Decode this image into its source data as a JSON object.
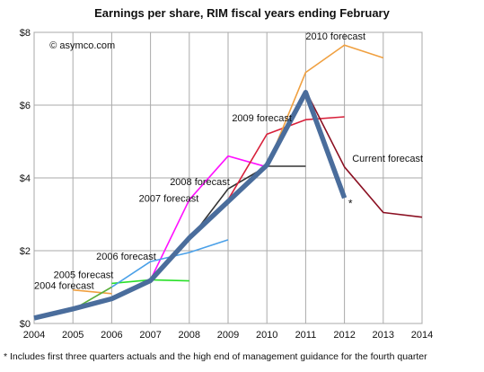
{
  "chart_data": {
    "type": "line",
    "title": "Earnings per share, RIM fiscal years ending February",
    "copyright": "© asymco.com",
    "footnote": "* Includes first three quarters actuals and the high end of management guidance for the fourth quarter",
    "x_ticks": [
      "2004",
      "2005",
      "2006",
      "2007",
      "2008",
      "2009",
      "2010",
      "2011",
      "2012",
      "2013",
      "2014"
    ],
    "y_ticks": [
      {
        "value": 0,
        "label": "$0"
      },
      {
        "value": 2,
        "label": "$2"
      },
      {
        "value": 4,
        "label": "$4"
      },
      {
        "value": 6,
        "label": "$6"
      },
      {
        "value": 8,
        "label": "$8"
      }
    ],
    "xlim": [
      2004,
      2014
    ],
    "ylim": [
      0,
      8
    ],
    "grid": true,
    "series": [
      {
        "name": "2004 forecast",
        "color": "#f0a040",
        "points": [
          [
            2005,
            0.92
          ],
          [
            2006,
            0.82
          ]
        ]
      },
      {
        "name": "2005 forecast",
        "color": "#5aaf3a",
        "points": [
          [
            2005,
            0.38
          ],
          [
            2006,
            1.0
          ]
        ]
      },
      {
        "name": "2006 forecast",
        "color": "#28e028",
        "points": [
          [
            2006,
            1.1
          ],
          [
            2007,
            1.2
          ],
          [
            2008,
            1.17
          ]
        ]
      },
      {
        "name": "2007 forecast",
        "color": "#ff10ff",
        "points": [
          [
            2007,
            1.2
          ],
          [
            2008,
            3.4
          ],
          [
            2009,
            4.6
          ],
          [
            2010,
            4.3
          ]
        ]
      },
      {
        "name": "2008 forecast",
        "color": "#333333",
        "points": [
          [
            2008,
            2.3
          ],
          [
            2009,
            3.7
          ],
          [
            2010,
            4.32
          ],
          [
            2011,
            4.32
          ]
        ]
      },
      {
        "name": "2009 forecast",
        "color": "#d8203a",
        "points": [
          [
            2009,
            3.4
          ],
          [
            2010,
            5.2
          ],
          [
            2011,
            5.6
          ],
          [
            2012,
            5.68
          ]
        ]
      },
      {
        "name": "2010 forecast",
        "color": "#f0a040",
        "points": [
          [
            2010,
            4.3
          ],
          [
            2011,
            6.9
          ],
          [
            2012,
            7.65
          ],
          [
            2013,
            7.3
          ]
        ]
      },
      {
        "name": "Current forecast",
        "color": "#8b1022",
        "points": [
          [
            2011,
            6.4
          ],
          [
            2012,
            4.3
          ],
          [
            2013,
            3.05
          ],
          [
            2014,
            2.92
          ]
        ]
      },
      {
        "name": "",
        "color": "#4aa0e8",
        "points": [
          [
            2006,
            1.0
          ],
          [
            2007,
            1.7
          ],
          [
            2008,
            1.95
          ],
          [
            2009,
            2.3
          ]
        ]
      },
      {
        "name": "",
        "color": "#4a6d9c",
        "role": "actuals",
        "points": [
          [
            2004,
            0.15
          ],
          [
            2005,
            0.4
          ],
          [
            2006,
            0.68
          ],
          [
            2007,
            1.18
          ],
          [
            2008,
            2.35
          ],
          [
            2009,
            3.35
          ],
          [
            2010,
            4.35
          ],
          [
            2011,
            6.35
          ],
          [
            2012,
            3.45
          ]
        ]
      }
    ],
    "labels": [
      {
        "text": "2004 forecast",
        "x": 2004,
        "y": 0.95
      },
      {
        "text": "2005 forecast",
        "x": 2004.5,
        "y": 1.25
      },
      {
        "text": "2006 forecast",
        "x": 2005.6,
        "y": 1.75
      },
      {
        "text": "2007 forecast",
        "x": 2006.7,
        "y": 3.35
      },
      {
        "text": "2008 forecast",
        "x": 2007.5,
        "y": 3.8
      },
      {
        "text": "2009 forecast",
        "x": 2009.1,
        "y": 5.55
      },
      {
        "text": "2010 forecast",
        "x": 2011,
        "y": 7.8
      },
      {
        "text": "Current forecast",
        "x": 2012.2,
        "y": 4.45
      }
    ],
    "marker": {
      "text": "*",
      "x": 2012.1,
      "y": 3.2
    }
  }
}
